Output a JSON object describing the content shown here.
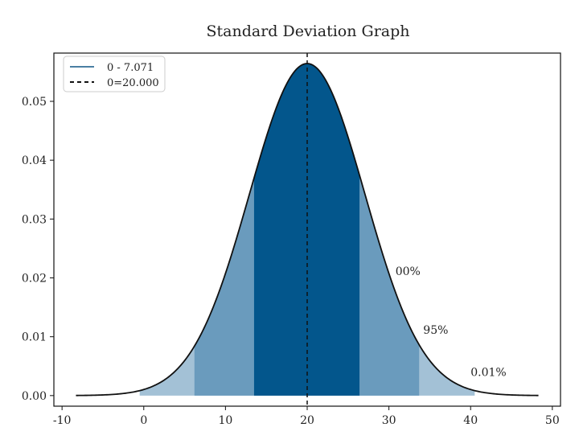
{
  "chart_data": {
    "type": "area",
    "title": "Standard Deviation Graph",
    "xlabel": "",
    "ylabel": "",
    "distribution": {
      "mean": 20.0,
      "std": 7.071
    },
    "curve_range": [
      -8.3,
      48.3
    ],
    "xlim": [
      -11,
      51
    ],
    "ylim": [
      -0.0018,
      0.0582
    ],
    "xticks": [
      -10,
      0,
      10,
      20,
      30,
      40,
      50
    ],
    "xtick_labels": [
      "-10",
      "0",
      "10",
      "20",
      "30",
      "40",
      "50"
    ],
    "yticks": [
      0.0,
      0.01,
      0.02,
      0.03,
      0.04,
      0.05
    ],
    "ytick_labels": [
      "0.00",
      "0.01",
      "0.02",
      "0.03",
      "0.04",
      "0.05"
    ],
    "bands": [
      {
        "from": -0.5,
        "to": 40.5,
        "color": "#a3c1d6"
      },
      {
        "from": 6.2,
        "to": 33.7,
        "color": "#6a9bbd"
      },
      {
        "from": 13.5,
        "to": 26.4,
        "color": "#03568c"
      }
    ],
    "annotations": [
      {
        "text": "00%",
        "x": 30.8,
        "y": 0.0205
      },
      {
        "text": "95%",
        "x": 34.2,
        "y": 0.0105
      },
      {
        "text": "0.01%",
        "x": 40.0,
        "y": 0.0033
      }
    ],
    "mean_line": {
      "x": 20.0,
      "style": "dashed"
    },
    "legend": {
      "position": "top-left",
      "entries": [
        {
          "label": "0 - 7.071",
          "style": "solid",
          "color": "#4a7fa3"
        },
        {
          "label": "0=20.000",
          "style": "dashed",
          "color": "#111111"
        }
      ]
    },
    "grid": false
  }
}
